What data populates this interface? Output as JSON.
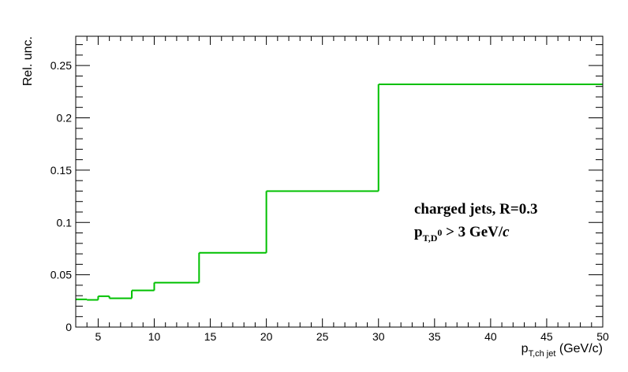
{
  "chart_data": {
    "type": "line",
    "style": "step-histogram",
    "bin_edges": [
      3,
      4,
      5,
      6,
      8,
      10,
      14,
      20,
      30,
      50
    ],
    "values": [
      0.0265,
      0.026,
      0.0295,
      0.0275,
      0.035,
      0.0425,
      0.071,
      0.13,
      0.232
    ],
    "xlim": [
      3,
      50
    ],
    "ylim": [
      0,
      0.278
    ],
    "x_ticks": [
      5,
      10,
      15,
      20,
      25,
      30,
      35,
      40,
      45,
      50
    ],
    "x_tick_labels": [
      "5",
      "10",
      "15",
      "20",
      "25",
      "30",
      "35",
      "40",
      "45",
      "50"
    ],
    "y_ticks": [
      0,
      0.05,
      0.1,
      0.15,
      0.2,
      0.25
    ],
    "y_tick_labels": [
      "0",
      "0.05",
      "0.1",
      "0.15",
      "0.2",
      "0.25"
    ],
    "xlabel": {
      "main": "p",
      "sub": "T,ch jet",
      "tail": " (GeV/c)"
    },
    "ylabel": "Rel. unc.",
    "annotation": {
      "line1": "charged jets, R=0.3",
      "line2_main": "p",
      "line2_sub": "T,D",
      "line2_sup": "0",
      "line2_tail": " > 3 GeV/",
      "line2_italic": "c"
    },
    "grid": false,
    "line_color": "#00c000"
  }
}
